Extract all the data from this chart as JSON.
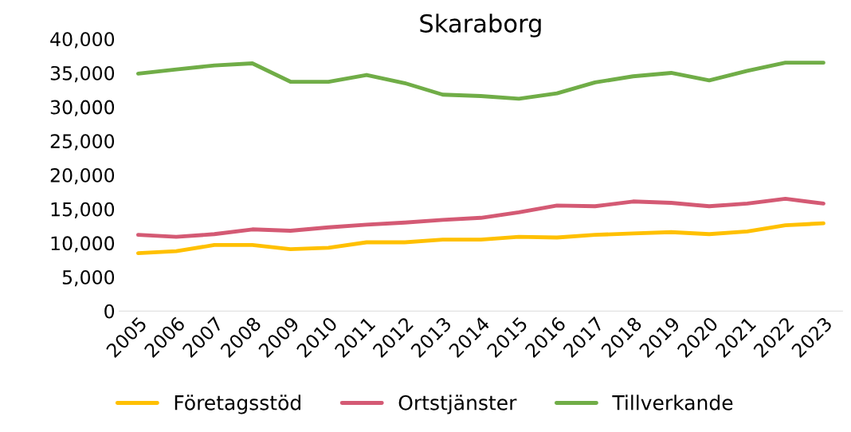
{
  "chart_data": {
    "type": "line",
    "title": "Skaraborg",
    "categories": [
      "2005",
      "2006",
      "2007",
      "2008",
      "2009",
      "2010",
      "2011",
      "2012",
      "2013",
      "2014",
      "2015",
      "2016",
      "2017",
      "2018",
      "2019",
      "2020",
      "2021",
      "2022",
      "2023"
    ],
    "series": [
      {
        "name": "Företagsstöd",
        "color": "#ffc000",
        "values": [
          8500,
          8800,
          9700,
          9700,
          9100,
          9300,
          10100,
          10100,
          10500,
          10500,
          10900,
          10800,
          11200,
          11400,
          11600,
          11300,
          11700,
          12600,
          12900
        ]
      },
      {
        "name": "Ortstjänster",
        "color": "#d45a74",
        "values": [
          11200,
          10900,
          11300,
          12000,
          11800,
          12300,
          12700,
          13000,
          13400,
          13700,
          14500,
          15500,
          15400,
          16100,
          15900,
          15400,
          15800,
          16500,
          15800
        ]
      },
      {
        "name": "Tillverkande",
        "color": "#70ad47",
        "values": [
          34900,
          35500,
          36100,
          36400,
          33700,
          33700,
          34700,
          33500,
          31800,
          31600,
          31200,
          32000,
          33600,
          34500,
          35000,
          33900,
          35300,
          36500,
          36500
        ]
      }
    ],
    "ylim": [
      0,
      40000
    ],
    "yticks": [
      {
        "value": 0,
        "label": "0"
      },
      {
        "value": 5000,
        "label": "5,000"
      },
      {
        "value": 10000,
        "label": "10,000"
      },
      {
        "value": 15000,
        "label": "15,000"
      },
      {
        "value": 20000,
        "label": "20,000"
      },
      {
        "value": 25000,
        "label": "25,000"
      },
      {
        "value": 30000,
        "label": "30,000"
      },
      {
        "value": 35000,
        "label": "35,000"
      },
      {
        "value": 40000,
        "label": "40,000"
      }
    ],
    "grid": false,
    "legend": "bottom",
    "marker": "none",
    "line_style": "solid"
  }
}
